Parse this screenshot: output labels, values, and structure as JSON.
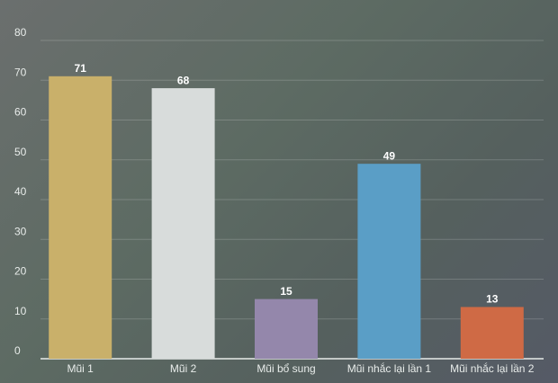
{
  "chart_data": {
    "type": "bar",
    "categories": [
      "Mũi 1",
      "Mũi 2",
      "Mũi bổ sung",
      "Mũi nhắc lại lần 1",
      "Mũi nhắc lại lần 2"
    ],
    "values": [
      71,
      68,
      15,
      49,
      13
    ],
    "colors": [
      "#c9b06a",
      "#d8dcdb",
      "#9487ab",
      "#5a9ec6",
      "#cf6a45"
    ],
    "ylim": [
      0,
      80
    ],
    "yticks": [
      0,
      10,
      20,
      30,
      40,
      50,
      60,
      70,
      80
    ],
    "grid": true
  }
}
